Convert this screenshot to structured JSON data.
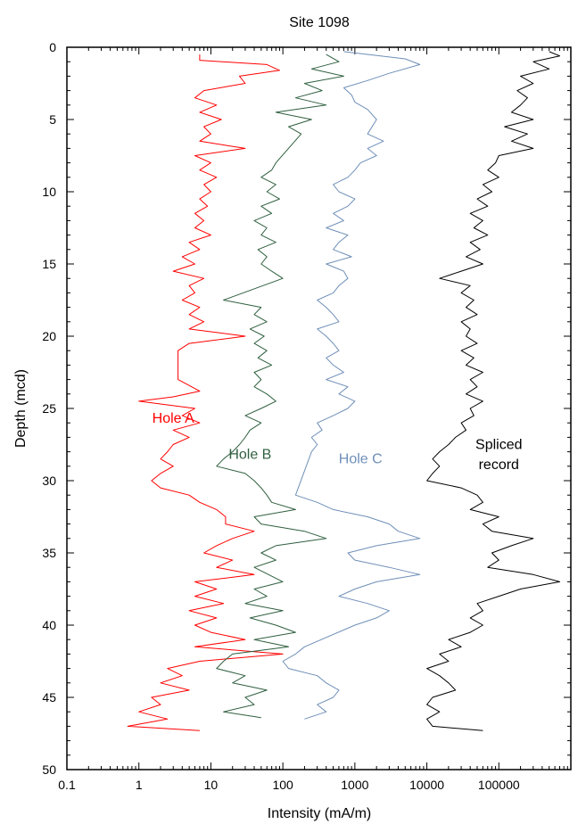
{
  "chart_data": {
    "type": "line",
    "title": "Site 1098",
    "xlabel": "Intensity (mA/m)",
    "ylabel": "Depth (mcd)",
    "x_scale": "log",
    "xlim": [
      0.1,
      1000000
    ],
    "ylim": [
      0,
      50
    ],
    "y_inverted": true,
    "x_ticks": [
      0.1,
      1,
      10,
      100,
      1000,
      10000,
      100000
    ],
    "x_tick_labels": [
      "0.1",
      "1",
      "10",
      "100",
      "1000",
      "10000",
      "100000"
    ],
    "y_ticks": [
      0,
      5,
      10,
      15,
      20,
      25,
      30,
      35,
      40,
      45,
      50
    ],
    "y_tick_labels": [
      "0",
      "5",
      "10",
      "15",
      "20",
      "25",
      "30",
      "35",
      "40",
      "45",
      "50"
    ],
    "grid": false,
    "series": [
      {
        "name": "Hole A",
        "color": "#ff0000",
        "depth": [
          0.5,
          0.9,
          1.2,
          1.6,
          2.0,
          2.5,
          3.0,
          3.5,
          4.0,
          4.5,
          5.0,
          5.5,
          6.0,
          6.5,
          7.0,
          7.5,
          8.0,
          8.5,
          9.0,
          9.5,
          10.0,
          10.5,
          11.0,
          11.5,
          12.0,
          12.5,
          13.0,
          13.5,
          14.0,
          14.5,
          15.0,
          15.5,
          16.0,
          16.5,
          17.0,
          17.5,
          18.0,
          18.5,
          19.0,
          19.5,
          20.0,
          20.5,
          21.0,
          22.0,
          23.0,
          23.8,
          24.2,
          24.5,
          25.0,
          25.5,
          26.0,
          26.5,
          27.0,
          27.5,
          28.0,
          28.5,
          29.0,
          29.5,
          30.0,
          30.5,
          31.0,
          31.5,
          32.0,
          32.5,
          33.0,
          33.5,
          34.0,
          34.5,
          35.0,
          35.5,
          36.0,
          36.5,
          37.0,
          37.5,
          38.0,
          38.5,
          39.0,
          39.5,
          40.0,
          40.5,
          41.0,
          41.5,
          42.0,
          42.5,
          43.0,
          43.5,
          44.0,
          44.5,
          45.0,
          45.5,
          46.0,
          46.5,
          47.0,
          47.3
        ],
        "intensity": [
          7,
          7,
          60,
          90,
          25,
          30,
          8,
          6,
          12,
          7,
          14,
          8,
          10,
          7,
          30,
          6,
          10,
          7,
          12,
          8,
          10,
          7,
          9,
          6,
          8,
          6,
          10,
          5,
          7,
          4,
          6,
          3,
          8,
          5,
          6,
          4,
          7,
          5,
          8,
          5,
          30,
          5,
          3.5,
          3.5,
          3.5,
          7,
          3,
          1,
          6,
          4,
          7,
          3,
          5,
          3,
          2.5,
          2,
          3,
          2,
          1.5,
          2,
          5,
          7,
          12,
          16,
          16,
          40,
          20,
          12,
          8,
          20,
          12,
          40,
          6,
          12,
          6,
          15,
          5,
          12,
          6,
          10,
          30,
          6,
          100,
          7,
          2.5,
          4,
          2,
          5,
          1.5,
          2,
          1,
          2.5,
          0.7,
          7
        ]
      },
      {
        "name": "Hole B",
        "color": "#2f5f3f",
        "depth": [
          0.5,
          1.0,
          1.5,
          2.0,
          2.5,
          3.0,
          3.5,
          4.0,
          4.5,
          5.0,
          5.5,
          6.0,
          8.0,
          8.5,
          9.0,
          9.5,
          10.0,
          10.5,
          11.0,
          11.5,
          12.0,
          12.5,
          13.0,
          13.5,
          14.0,
          14.5,
          15.0,
          15.5,
          16.0,
          17.5,
          18.0,
          18.5,
          19.0,
          19.5,
          20.0,
          20.5,
          21.0,
          21.5,
          22.0,
          22.5,
          23.0,
          23.5,
          24.0,
          24.5,
          25.0,
          25.5,
          26.0,
          26.5,
          27.0,
          27.5,
          28.0,
          28.5,
          29.0,
          29.5,
          30.0,
          30.5,
          31.0,
          31.5,
          32.0,
          32.5,
          33.0,
          33.5,
          34.0,
          34.5,
          35.0,
          35.5,
          36.0,
          37.0,
          37.5,
          38.0,
          38.5,
          39.0,
          39.5,
          40.0,
          40.5,
          41.0,
          41.5,
          42.0,
          42.5,
          43.0,
          43.5,
          44.0,
          44.5,
          45.0,
          45.5,
          46.0,
          46.4
        ],
        "intensity": [
          400,
          600,
          250,
          700,
          200,
          350,
          150,
          400,
          80,
          250,
          120,
          180,
          80,
          70,
          50,
          80,
          60,
          90,
          50,
          70,
          40,
          60,
          50,
          80,
          45,
          60,
          50,
          70,
          100,
          15,
          50,
          40,
          60,
          35,
          55,
          40,
          60,
          45,
          70,
          40,
          50,
          40,
          60,
          80,
          50,
          30,
          50,
          35,
          30,
          25,
          20,
          15,
          12,
          30,
          40,
          50,
          60,
          70,
          150,
          40,
          50,
          200,
          400,
          80,
          50,
          80,
          40,
          100,
          40,
          60,
          30,
          100,
          35,
          80,
          150,
          40,
          120,
          20,
          15,
          12,
          30,
          20,
          60,
          30,
          40,
          15,
          50
        ]
      },
      {
        "name": "Hole C",
        "color": "#6f8fb8",
        "depth": [
          0.3,
          0.8,
          1.2,
          1.8,
          2.3,
          2.8,
          3.3,
          3.8,
          4.3,
          5.0,
          6.0,
          6.5,
          7.0,
          7.5,
          8.0,
          8.5,
          9.0,
          9.5,
          10.0,
          10.5,
          11.0,
          11.5,
          12.0,
          12.5,
          13.0,
          13.5,
          14.0,
          14.5,
          15.0,
          15.5,
          16.0,
          16.5,
          17.0,
          17.5,
          18.0,
          18.5,
          19.0,
          19.5,
          20.0,
          20.5,
          21.0,
          21.5,
          22.0,
          22.5,
          23.0,
          23.5,
          24.0,
          24.5,
          25.0,
          25.5,
          26.0,
          26.5,
          27.0,
          27.5,
          28.0,
          31.0,
          31.5,
          32.0,
          32.5,
          33.0,
          33.5,
          34.0,
          34.5,
          35.0,
          35.5,
          36.0,
          36.5,
          37.0,
          37.5,
          38.0,
          38.5,
          39.0,
          39.5,
          40.0,
          41.5,
          42.0,
          42.5,
          43.0,
          43.5,
          44.0,
          44.5,
          45.0,
          45.5,
          46.0,
          46.5
        ],
        "intensity": [
          700,
          5000,
          8000,
          3000,
          1500,
          700,
          900,
          1000,
          1500,
          2000,
          1500,
          2500,
          1500,
          2000,
          1200,
          1000,
          800,
          500,
          600,
          1000,
          800,
          500,
          700,
          400,
          800,
          600,
          500,
          900,
          400,
          700,
          800,
          600,
          500,
          300,
          400,
          500,
          600,
          300,
          400,
          500,
          600,
          400,
          500,
          700,
          400,
          800,
          600,
          1000,
          800,
          500,
          300,
          350,
          250,
          300,
          250,
          150,
          300,
          500,
          1500,
          3000,
          4000,
          8000,
          2000,
          800,
          1000,
          3000,
          8000,
          2000,
          1000,
          600,
          1500,
          3000,
          2000,
          1000,
          200,
          150,
          100,
          120,
          300,
          400,
          600,
          500,
          300,
          400,
          200
        ]
      },
      {
        "name": "Spliced record",
        "color": "#000000",
        "depth": [
          0.3,
          0.6,
          1.0,
          1.5,
          2.0,
          2.5,
          3.0,
          3.5,
          4.0,
          4.5,
          5.0,
          5.5,
          6.0,
          6.5,
          7.0,
          7.5,
          8.0,
          8.5,
          9.0,
          9.5,
          10.0,
          10.5,
          11.0,
          11.5,
          12.0,
          12.5,
          13.0,
          13.5,
          14.0,
          14.5,
          15.0,
          15.5,
          16.0,
          16.5,
          17.0,
          17.5,
          18.0,
          18.5,
          19.0,
          19.5,
          20.0,
          20.5,
          21.0,
          21.5,
          22.0,
          22.5,
          23.0,
          23.5,
          24.0,
          24.5,
          25.0,
          25.5,
          26.0,
          26.5,
          27.0,
          27.5,
          28.0,
          28.5,
          29.0,
          29.5,
          30.0,
          30.5,
          31.0,
          31.5,
          32.0,
          32.5,
          33.0,
          33.5,
          34.0,
          34.5,
          35.0,
          35.5,
          36.0,
          36.5,
          37.0,
          37.5,
          38.0,
          38.5,
          39.0,
          39.5,
          40.0,
          40.5,
          41.0,
          41.5,
          42.0,
          42.5,
          43.0,
          43.5,
          44.0,
          44.5,
          45.0,
          45.5,
          46.0,
          46.5,
          47.0,
          47.3
        ],
        "intensity": [
          500000,
          700000,
          300000,
          500000,
          200000,
          300000,
          180000,
          250000,
          200000,
          150000,
          300000,
          120000,
          250000,
          150000,
          300000,
          100000,
          90000,
          70000,
          100000,
          60000,
          80000,
          50000,
          70000,
          40000,
          60000,
          45000,
          70000,
          40000,
          55000,
          35000,
          60000,
          30000,
          15000,
          40000,
          30000,
          45000,
          35000,
          50000,
          30000,
          40000,
          35000,
          50000,
          30000,
          45000,
          35000,
          60000,
          40000,
          50000,
          35000,
          60000,
          40000,
          45000,
          30000,
          35000,
          25000,
          20000,
          15000,
          12000,
          15000,
          12000,
          10000,
          30000,
          50000,
          60000,
          40000,
          100000,
          60000,
          80000,
          300000,
          150000,
          80000,
          100000,
          70000,
          300000,
          700000,
          200000,
          100000,
          50000,
          60000,
          40000,
          60000,
          40000,
          20000,
          30000,
          15000,
          20000,
          10000,
          15000,
          20000,
          25000,
          12000,
          10000,
          15000,
          10000,
          12000,
          60000
        ]
      }
    ],
    "annotations": [
      {
        "text": "Hole A",
        "x": 3,
        "y": 26
      },
      {
        "text": "Hole B",
        "x": 35,
        "y": 28.5
      },
      {
        "text": "Hole C",
        "x": 1200,
        "y": 28.8
      },
      {
        "text": "Spliced",
        "x": 100000,
        "y": 27.8
      },
      {
        "text": "record",
        "x": 100000,
        "y": 29.2
      }
    ]
  }
}
